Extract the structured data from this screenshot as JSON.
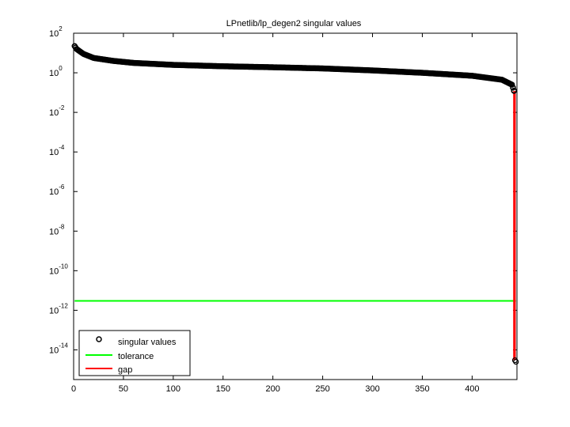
{
  "chart_data": {
    "type": "scatter",
    "title": "LPnetlib/lp_degen2 singular values",
    "xlabel": "",
    "ylabel": "",
    "xlim": [
      0,
      445
    ],
    "ylim_log10": [
      -15.5,
      2
    ],
    "y_scale": "log",
    "grid": false,
    "legend_position": "bottom-left",
    "x_ticks": [
      0,
      50,
      100,
      150,
      200,
      250,
      300,
      350,
      400
    ],
    "y_ticks_log10": [
      2,
      0,
      -2,
      -4,
      -6,
      -8,
      -10,
      -12,
      -14
    ],
    "y_tick_labels": [
      {
        "base": "10",
        "exp": "2"
      },
      {
        "base": "10",
        "exp": "0"
      },
      {
        "base": "10",
        "exp": "-2"
      },
      {
        "base": "10",
        "exp": "-4"
      },
      {
        "base": "10",
        "exp": "-6"
      },
      {
        "base": "10",
        "exp": "-8"
      },
      {
        "base": "10",
        "exp": "-10"
      },
      {
        "base": "10",
        "exp": "-12"
      },
      {
        "base": "10",
        "exp": "-14"
      }
    ],
    "singular_values": {
      "name": "singular values",
      "color": "#000000",
      "marker": "circle",
      "count": 444,
      "tail_points": [
        [
          442,
          0.12
        ],
        [
          443,
          3e-15
        ],
        [
          444,
          2.5e-15
        ]
      ],
      "profile_log10": [
        [
          1,
          1.35
        ],
        [
          3,
          1.2
        ],
        [
          10,
          0.95
        ],
        [
          20,
          0.75
        ],
        [
          40,
          0.6
        ],
        [
          60,
          0.5
        ],
        [
          100,
          0.4
        ],
        [
          150,
          0.33
        ],
        [
          200,
          0.28
        ],
        [
          250,
          0.22
        ],
        [
          300,
          0.12
        ],
        [
          350,
          0.0
        ],
        [
          400,
          -0.15
        ],
        [
          430,
          -0.35
        ],
        [
          440,
          -0.6
        ],
        [
          442,
          -0.9
        ]
      ]
    },
    "tolerance": {
      "name": "tolerance",
      "color": "#00ff00",
      "value": 3e-12,
      "x_range": [
        1,
        444
      ]
    },
    "gap": {
      "name": "gap",
      "color": "#ff0000",
      "segments": [
        {
          "x": 442,
          "y_from": 0.12,
          "y_to": 3e-15
        },
        {
          "x": 443,
          "y_from": 0.12,
          "y_to": 3e-15
        }
      ]
    }
  }
}
